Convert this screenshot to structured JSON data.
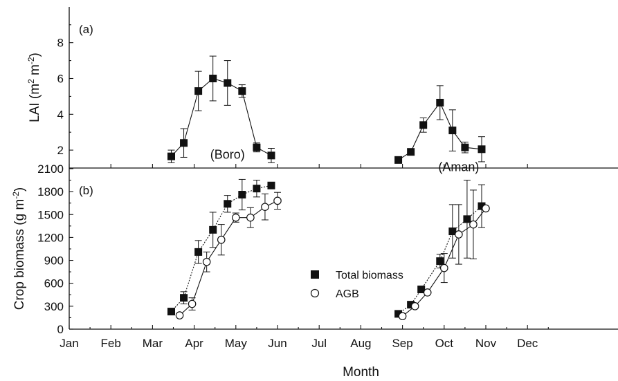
{
  "chart_data": [
    {
      "panel": "(a)",
      "type": "scatter",
      "ylabel": "LAI (m",
      "ylabel_sup1": "2",
      "ylabel_mid": " m",
      "ylabel_sup2": "-2",
      "ylabel_end": ")",
      "y_ticks": [
        "2",
        "4",
        "6",
        "8"
      ],
      "ylim": [
        1,
        9
      ],
      "annotations": [
        {
          "text": "(Boro)",
          "x": 4.8,
          "y": 1.75
        },
        {
          "text": "(Aman)",
          "x": 10.35,
          "y": 1.05
        }
      ],
      "series": [
        {
          "season": "Boro",
          "marker": "filled-square",
          "x": [
            3.45,
            3.75,
            4.1,
            4.45,
            4.8,
            5.15,
            5.5,
            5.85
          ],
          "y": [
            1.65,
            2.4,
            5.3,
            6.0,
            5.75,
            5.3,
            2.15,
            1.7
          ],
          "err": [
            0.35,
            0.8,
            1.1,
            1.25,
            1.25,
            0.35,
            0.25,
            0.4
          ]
        },
        {
          "season": "Aman",
          "marker": "filled-square",
          "x": [
            8.9,
            9.2,
            9.5,
            9.9,
            10.2,
            10.5,
            10.9
          ],
          "y": [
            1.45,
            1.9,
            3.4,
            4.65,
            3.1,
            2.15,
            2.05
          ],
          "err": [
            0.0,
            0.0,
            0.4,
            0.95,
            1.15,
            0.3,
            0.7
          ]
        }
      ]
    },
    {
      "panel": "(b)",
      "type": "scatter",
      "xlabel": "Month",
      "ylabel": "Crop biomass (g m",
      "ylabel_sup": "-2",
      "ylabel_end": ")",
      "x_ticks": [
        "Jan",
        "Feb",
        "Mar",
        "Apr",
        "May",
        "Jun",
        "Jul",
        "Aug",
        "Sep",
        "Oct",
        "Nov",
        "Dec"
      ],
      "y_ticks": [
        "0",
        "300",
        "600",
        "900",
        "1200",
        "1500",
        "1800",
        "2100"
      ],
      "ylim": [
        0,
        2100
      ],
      "legend_position": "center",
      "legend": [
        {
          "label": "Total biomass",
          "marker": "filled-square"
        },
        {
          "label": "AGB",
          "marker": "open-circle"
        }
      ],
      "series": [
        {
          "name": "Total biomass",
          "season": "Boro",
          "marker": "filled-square",
          "x": [
            3.45,
            3.75,
            4.1,
            4.45,
            4.8,
            5.15,
            5.5,
            5.85
          ],
          "y": [
            230,
            410,
            1010,
            1300,
            1640,
            1760,
            1840,
            1880
          ],
          "err": [
            0,
            80,
            150,
            230,
            110,
            200,
            110,
            0
          ]
        },
        {
          "name": "AGB",
          "season": "Boro",
          "marker": "open-circle",
          "x": [
            3.65,
            3.95,
            4.3,
            4.65,
            5.0,
            5.35,
            5.7,
            6.0
          ],
          "y": [
            180,
            330,
            880,
            1170,
            1460,
            1460,
            1600,
            1680
          ],
          "err": [
            0,
            80,
            130,
            200,
            60,
            130,
            170,
            110
          ]
        },
        {
          "name": "Total biomass",
          "season": "Aman",
          "marker": "filled-square",
          "x": [
            8.9,
            9.2,
            9.45,
            9.9,
            10.2,
            10.55,
            10.9
          ],
          "y": [
            200,
            320,
            520,
            890,
            1280,
            1440,
            1610
          ],
          "err": [
            0,
            0,
            0,
            90,
            350,
            510,
            280
          ]
        },
        {
          "name": "AGB",
          "season": "Aman",
          "marker": "open-circle",
          "x": [
            9.0,
            9.3,
            9.6,
            10.0,
            10.35,
            10.7,
            11.0
          ],
          "y": [
            170,
            300,
            480,
            800,
            1240,
            1370,
            1580
          ],
          "err": [
            0,
            0,
            0,
            190,
            390,
            450,
            0
          ]
        }
      ]
    }
  ]
}
